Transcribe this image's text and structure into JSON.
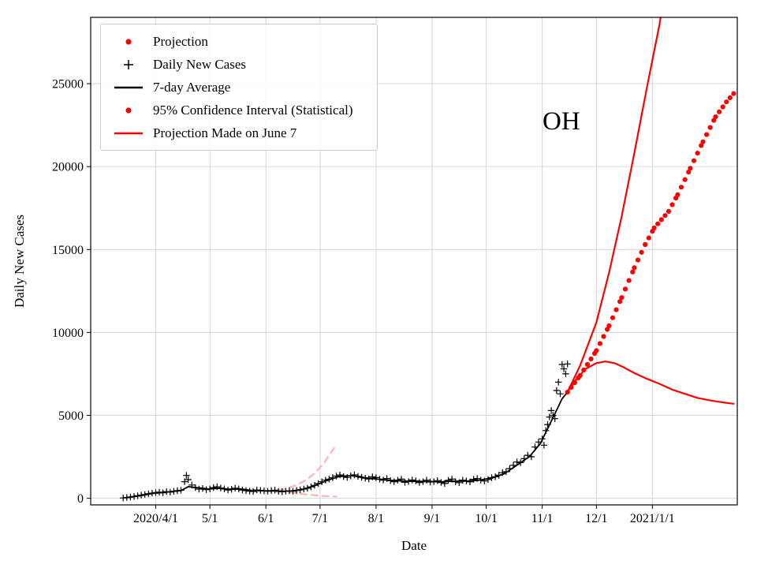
{
  "chart_data": {
    "type": "line",
    "annotation": "OH",
    "xlabel": "Date",
    "ylabel": "Daily New Cases",
    "x_range": [
      "2020-02-25",
      "2021-02-17"
    ],
    "ylim": [
      -400,
      29000
    ],
    "grid": true,
    "grid_color": "#d6d6d6",
    "legend_position": "upper-left",
    "yticks": [
      0,
      5000,
      10000,
      15000,
      20000,
      25000
    ],
    "xticks": [
      {
        "date": "2020-04-01",
        "label": "2020/4/1"
      },
      {
        "date": "2020-05-01",
        "label": "5/1"
      },
      {
        "date": "2020-06-01",
        "label": "6/1"
      },
      {
        "date": "2020-07-01",
        "label": "7/1"
      },
      {
        "date": "2020-08-01",
        "label": "8/1"
      },
      {
        "date": "2020-09-01",
        "label": "9/1"
      },
      {
        "date": "2020-10-01",
        "label": "10/1"
      },
      {
        "date": "2020-11-01",
        "label": "11/1"
      },
      {
        "date": "2020-12-01",
        "label": "12/1"
      },
      {
        "date": "2021-01-01",
        "label": "2021/1/1"
      }
    ],
    "legend": [
      {
        "label": "Projection",
        "marker": "dot",
        "color": "#ff0000"
      },
      {
        "label": "Daily New Cases",
        "marker": "plus",
        "color": "#000000"
      },
      {
        "label": "7-day Average",
        "marker": "line",
        "color": "#000000"
      },
      {
        "label": "95% Confidence Interval (Statistical)",
        "marker": "dot",
        "color": "#ff0000"
      },
      {
        "label": "Projection Made on June 7",
        "marker": "line",
        "color": "#ff0000"
      }
    ],
    "series": [
      {
        "name": "June 7 Projection Upper Bound",
        "style": "dashed",
        "color": "#ffb4b4",
        "width": 2.2,
        "points": [
          [
            "2020-06-08",
            500
          ],
          [
            "2020-06-13",
            620
          ],
          [
            "2020-06-18",
            800
          ],
          [
            "2020-06-23",
            1080
          ],
          [
            "2020-06-28",
            1500
          ],
          [
            "2020-07-03",
            2100
          ],
          [
            "2020-07-07",
            2750
          ],
          [
            "2020-07-10",
            3200
          ]
        ]
      },
      {
        "name": "June 7 Projection Lower Bound",
        "style": "dashed",
        "color": "#ffb4b4",
        "width": 2.2,
        "points": [
          [
            "2020-06-08",
            470
          ],
          [
            "2020-06-13",
            380
          ],
          [
            "2020-06-18",
            300
          ],
          [
            "2020-06-24",
            220
          ],
          [
            "2020-06-30",
            160
          ],
          [
            "2020-07-06",
            120
          ],
          [
            "2020-07-10",
            100
          ]
        ]
      },
      {
        "name": "Daily New Cases",
        "style": "plus",
        "color": "#000000",
        "points": [
          [
            "2020-03-14",
            20
          ],
          [
            "2020-03-16",
            45
          ],
          [
            "2020-03-18",
            75
          ],
          [
            "2020-03-20",
            110
          ],
          [
            "2020-03-22",
            150
          ],
          [
            "2020-03-24",
            190
          ],
          [
            "2020-03-26",
            230
          ],
          [
            "2020-03-28",
            270
          ],
          [
            "2020-03-30",
            310
          ],
          [
            "2020-04-01",
            340
          ],
          [
            "2020-04-03",
            365
          ],
          [
            "2020-04-05",
            330
          ],
          [
            "2020-04-07",
            400
          ],
          [
            "2020-04-09",
            370
          ],
          [
            "2020-04-11",
            420
          ],
          [
            "2020-04-13",
            455
          ],
          [
            "2020-04-15",
            480
          ],
          [
            "2020-04-17",
            1000
          ],
          [
            "2020-04-18",
            1380
          ],
          [
            "2020-04-19",
            1120
          ],
          [
            "2020-04-21",
            800
          ],
          [
            "2020-04-23",
            640
          ],
          [
            "2020-04-25",
            550
          ],
          [
            "2020-04-27",
            590
          ],
          [
            "2020-04-29",
            520
          ],
          [
            "2020-05-01",
            560
          ],
          [
            "2020-05-03",
            640
          ],
          [
            "2020-05-05",
            690
          ],
          [
            "2020-05-07",
            620
          ],
          [
            "2020-05-09",
            560
          ],
          [
            "2020-05-11",
            500
          ],
          [
            "2020-05-13",
            540
          ],
          [
            "2020-05-15",
            610
          ],
          [
            "2020-05-17",
            560
          ],
          [
            "2020-05-19",
            500
          ],
          [
            "2020-05-21",
            460
          ],
          [
            "2020-05-23",
            430
          ],
          [
            "2020-05-25",
            410
          ],
          [
            "2020-05-27",
            500
          ],
          [
            "2020-05-29",
            470
          ],
          [
            "2020-05-31",
            440
          ],
          [
            "2020-06-02",
            430
          ],
          [
            "2020-06-04",
            465
          ],
          [
            "2020-06-06",
            490
          ],
          [
            "2020-06-08",
            420
          ],
          [
            "2020-06-10",
            390
          ],
          [
            "2020-06-12",
            425
          ],
          [
            "2020-06-14",
            450
          ],
          [
            "2020-06-16",
            430
          ],
          [
            "2020-06-18",
            470
          ],
          [
            "2020-06-20",
            515
          ],
          [
            "2020-06-22",
            555
          ],
          [
            "2020-06-24",
            605
          ],
          [
            "2020-06-26",
            685
          ],
          [
            "2020-06-28",
            780
          ],
          [
            "2020-06-30",
            890
          ],
          [
            "2020-07-02",
            995
          ],
          [
            "2020-07-04",
            1090
          ],
          [
            "2020-07-06",
            1155
          ],
          [
            "2020-07-08",
            1235
          ],
          [
            "2020-07-10",
            1335
          ],
          [
            "2020-07-12",
            1405
          ],
          [
            "2020-07-14",
            1310
          ],
          [
            "2020-07-16",
            1255
          ],
          [
            "2020-07-18",
            1345
          ],
          [
            "2020-07-20",
            1410
          ],
          [
            "2020-07-22",
            1320
          ],
          [
            "2020-07-24",
            1260
          ],
          [
            "2020-07-26",
            1210
          ],
          [
            "2020-07-28",
            1160
          ],
          [
            "2020-07-30",
            1290
          ],
          [
            "2020-08-01",
            1245
          ],
          [
            "2020-08-03",
            1150
          ],
          [
            "2020-08-05",
            1095
          ],
          [
            "2020-08-07",
            1190
          ],
          [
            "2020-08-09",
            1060
          ],
          [
            "2020-08-11",
            1000
          ],
          [
            "2020-08-13",
            1090
          ],
          [
            "2020-08-15",
            1150
          ],
          [
            "2020-08-17",
            960
          ],
          [
            "2020-08-19",
            1010
          ],
          [
            "2020-08-21",
            1100
          ],
          [
            "2020-08-23",
            1050
          ],
          [
            "2020-08-25",
            950
          ],
          [
            "2020-08-27",
            1000
          ],
          [
            "2020-08-29",
            1090
          ],
          [
            "2020-08-31",
            980
          ],
          [
            "2020-09-02",
            1010
          ],
          [
            "2020-09-04",
            1060
          ],
          [
            "2020-09-06",
            950
          ],
          [
            "2020-09-08",
            890
          ],
          [
            "2020-09-10",
            1080
          ],
          [
            "2020-09-12",
            1150
          ],
          [
            "2020-09-14",
            1000
          ],
          [
            "2020-09-16",
            940
          ],
          [
            "2020-09-18",
            1090
          ],
          [
            "2020-09-20",
            1040
          ],
          [
            "2020-09-22",
            990
          ],
          [
            "2020-09-24",
            1140
          ],
          [
            "2020-09-26",
            1190
          ],
          [
            "2020-09-28",
            1090
          ],
          [
            "2020-09-30",
            1040
          ],
          [
            "2020-10-02",
            1130
          ],
          [
            "2020-10-04",
            1240
          ],
          [
            "2020-10-06",
            1300
          ],
          [
            "2020-10-08",
            1390
          ],
          [
            "2020-10-10",
            1540
          ],
          [
            "2020-10-12",
            1600
          ],
          [
            "2020-10-14",
            1790
          ],
          [
            "2020-10-16",
            1990
          ],
          [
            "2020-10-18",
            2190
          ],
          [
            "2020-10-20",
            2150
          ],
          [
            "2020-10-22",
            2390
          ],
          [
            "2020-10-24",
            2590
          ],
          [
            "2020-10-26",
            2500
          ],
          [
            "2020-10-28",
            3090
          ],
          [
            "2020-10-30",
            3390
          ],
          [
            "2020-11-01",
            3580
          ],
          [
            "2020-11-02",
            3200
          ],
          [
            "2020-11-03",
            4080
          ],
          [
            "2020-11-04",
            4450
          ],
          [
            "2020-11-05",
            4900
          ],
          [
            "2020-11-06",
            5290
          ],
          [
            "2020-11-07",
            5000
          ],
          [
            "2020-11-08",
            4800
          ],
          [
            "2020-11-09",
            6500
          ],
          [
            "2020-11-10",
            7000
          ],
          [
            "2020-11-11",
            6300
          ],
          [
            "2020-11-12",
            8070
          ],
          [
            "2020-11-13",
            7800
          ],
          [
            "2020-11-14",
            7500
          ],
          [
            "2020-11-15",
            8100
          ]
        ]
      },
      {
        "name": "7-day Average",
        "style": "line",
        "color": "#000000",
        "width": 1.8,
        "points": [
          [
            "2020-03-16",
            40
          ],
          [
            "2020-03-24",
            160
          ],
          [
            "2020-03-31",
            300
          ],
          [
            "2020-04-08",
            380
          ],
          [
            "2020-04-15",
            460
          ],
          [
            "2020-04-19",
            700
          ],
          [
            "2020-04-24",
            640
          ],
          [
            "2020-04-30",
            560
          ],
          [
            "2020-05-06",
            600
          ],
          [
            "2020-05-12",
            540
          ],
          [
            "2020-05-18",
            560
          ],
          [
            "2020-05-24",
            470
          ],
          [
            "2020-05-31",
            450
          ],
          [
            "2020-06-07",
            430
          ],
          [
            "2020-06-14",
            430
          ],
          [
            "2020-06-21",
            520
          ],
          [
            "2020-06-28",
            760
          ],
          [
            "2020-07-05",
            1080
          ],
          [
            "2020-07-12",
            1330
          ],
          [
            "2020-07-19",
            1360
          ],
          [
            "2020-07-26",
            1230
          ],
          [
            "2020-08-02",
            1150
          ],
          [
            "2020-08-09",
            1080
          ],
          [
            "2020-08-16",
            1040
          ],
          [
            "2020-08-23",
            1020
          ],
          [
            "2020-08-30",
            1010
          ],
          [
            "2020-09-06",
            990
          ],
          [
            "2020-09-13",
            1030
          ],
          [
            "2020-09-20",
            1030
          ],
          [
            "2020-09-27",
            1090
          ],
          [
            "2020-10-04",
            1210
          ],
          [
            "2020-10-11",
            1480
          ],
          [
            "2020-10-18",
            2000
          ],
          [
            "2020-10-25",
            2520
          ],
          [
            "2020-10-31",
            3300
          ],
          [
            "2020-11-04",
            4200
          ],
          [
            "2020-11-08",
            5100
          ],
          [
            "2020-11-12",
            6000
          ],
          [
            "2020-11-15",
            6400
          ]
        ]
      },
      {
        "name": "95% CI Upper",
        "style": "line",
        "color": "#ff0000",
        "width": 2.2,
        "points": [
          [
            "2020-11-15",
            6400
          ],
          [
            "2020-11-22",
            8000
          ],
          [
            "2020-12-01",
            10600
          ],
          [
            "2020-12-08",
            13600
          ],
          [
            "2020-12-15",
            17000
          ],
          [
            "2020-12-22",
            20800
          ],
          [
            "2020-12-29",
            24800
          ],
          [
            "2021-01-05",
            28600
          ],
          [
            "2021-01-09",
            31500
          ]
        ]
      },
      {
        "name": "95% CI Lower",
        "style": "line",
        "color": "#ff0000",
        "width": 2.2,
        "points": [
          [
            "2020-11-15",
            6400
          ],
          [
            "2020-11-20",
            7200
          ],
          [
            "2020-11-25",
            7800
          ],
          [
            "2020-12-01",
            8150
          ],
          [
            "2020-12-06",
            8250
          ],
          [
            "2020-12-11",
            8150
          ],
          [
            "2020-12-16",
            7900
          ],
          [
            "2020-12-22",
            7550
          ],
          [
            "2020-12-29",
            7200
          ],
          [
            "2021-01-05",
            6900
          ],
          [
            "2021-01-12",
            6550
          ],
          [
            "2021-01-19",
            6300
          ],
          [
            "2021-01-26",
            6050
          ],
          [
            "2021-02-02",
            5900
          ],
          [
            "2021-02-09",
            5780
          ],
          [
            "2021-02-15",
            5700
          ]
        ]
      },
      {
        "name": "Projection",
        "style": "dots",
        "color": "#ff0000",
        "dot_radius": 3.1,
        "sample_days": 2,
        "points": [
          [
            "2020-11-15",
            6400
          ],
          [
            "2020-11-22",
            7400
          ],
          [
            "2020-12-01",
            8900
          ],
          [
            "2020-12-08",
            10400
          ],
          [
            "2020-12-15",
            12100
          ],
          [
            "2020-12-22",
            13900
          ],
          [
            "2020-12-28",
            15300
          ],
          [
            "2021-01-02",
            16300
          ],
          [
            "2021-01-06",
            16800
          ],
          [
            "2021-01-10",
            17300
          ],
          [
            "2021-01-15",
            18300
          ],
          [
            "2021-01-22",
            19900
          ],
          [
            "2021-01-29",
            21500
          ],
          [
            "2021-02-05",
            23000
          ],
          [
            "2021-02-11",
            23900
          ],
          [
            "2021-02-15",
            24400
          ]
        ]
      }
    ]
  }
}
